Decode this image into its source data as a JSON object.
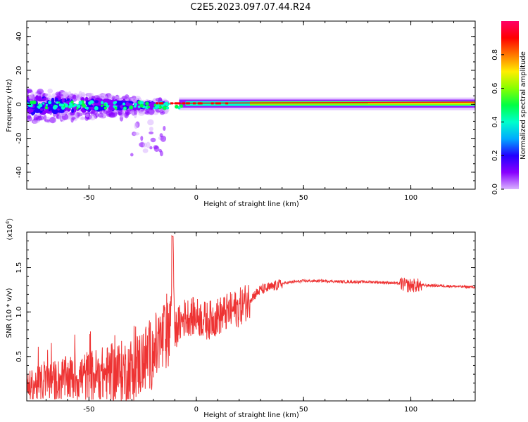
{
  "title": "C2E5.2023.097.07.44.R24",
  "chart_data": [
    {
      "type": "heatmap",
      "name": "spectrogram",
      "xlabel": "Height of straight line (km)",
      "ylabel": "Frequency (Hz)",
      "xlim": [
        -79,
        130
      ],
      "ylim": [
        -50,
        49
      ],
      "x_ticks": [
        -50,
        0,
        50,
        100
      ],
      "y_ticks": [
        -40,
        -20,
        0,
        20,
        40
      ],
      "colorbar": {
        "label": "Normalized spectral amplitude",
        "range": [
          0.0,
          1.0
        ],
        "ticks": [
          0.0,
          0.2,
          0.4,
          0.6,
          0.8
        ],
        "tick_labels": [
          "0.0",
          "0.2",
          "0.4",
          "0.6",
          "0.8"
        ],
        "colors": [
          "#ffffff",
          "#d9b3ff",
          "#8800ff",
          "#2200ff",
          "#00aaff",
          "#00ffcc",
          "#00ff44",
          "#88ff00",
          "#ffee00",
          "#ff7700",
          "#ff0000",
          "#ff0066"
        ]
      },
      "description_points": [
        {
          "x": -78,
          "f_center": -2,
          "spread": 8
        },
        {
          "x": -50,
          "f_center": 0,
          "spread": 7
        },
        {
          "x": -25,
          "f_center": -1,
          "spread": 5
        },
        {
          "x": -10,
          "f_center": 1,
          "spread": 2
        },
        {
          "x": 0,
          "f_center": 0,
          "spread": 1.5
        },
        {
          "x": 50,
          "f_center": 1,
          "spread": 1.5
        },
        {
          "x": 100,
          "f_center": 1.5,
          "spread": 1.5
        },
        {
          "x": 130,
          "f_center": 1.5,
          "spread": 1.5
        }
      ]
    },
    {
      "type": "line",
      "name": "snr",
      "xlabel": "Height of straight line (km)",
      "ylabel": "SNR (10 * v/v)",
      "multiplier_label": "(x10",
      "multiplier_exp": "4",
      "multiplier_close": ")",
      "xlim": [
        -79,
        130
      ],
      "ylim": [
        0.0,
        1.9
      ],
      "x_ticks": [
        -50,
        0,
        50,
        100
      ],
      "y_ticks": [
        0.5,
        1.0,
        1.5
      ],
      "y_tick_labels": [
        "0.5",
        "1.0",
        "1.5"
      ],
      "color": "#ee3333",
      "x": [
        -79,
        -70,
        -60,
        -50,
        -40,
        -30,
        -25,
        -20,
        -15,
        -12,
        -11,
        -10,
        -5,
        0,
        5,
        10,
        15,
        20,
        25,
        30,
        35,
        40,
        45,
        50,
        60,
        70,
        80,
        90,
        95,
        98,
        100,
        102,
        105,
        110,
        120,
        130
      ],
      "y": [
        0.15,
        0.22,
        0.25,
        0.28,
        0.3,
        0.35,
        0.45,
        0.55,
        0.7,
        0.9,
        1.85,
        0.8,
        0.95,
        0.95,
        0.9,
        0.95,
        1.0,
        1.05,
        1.15,
        1.25,
        1.28,
        1.32,
        1.34,
        1.35,
        1.35,
        1.34,
        1.34,
        1.33,
        1.32,
        1.3,
        1.3,
        1.3,
        1.3,
        1.3,
        1.29,
        1.28
      ]
    }
  ]
}
